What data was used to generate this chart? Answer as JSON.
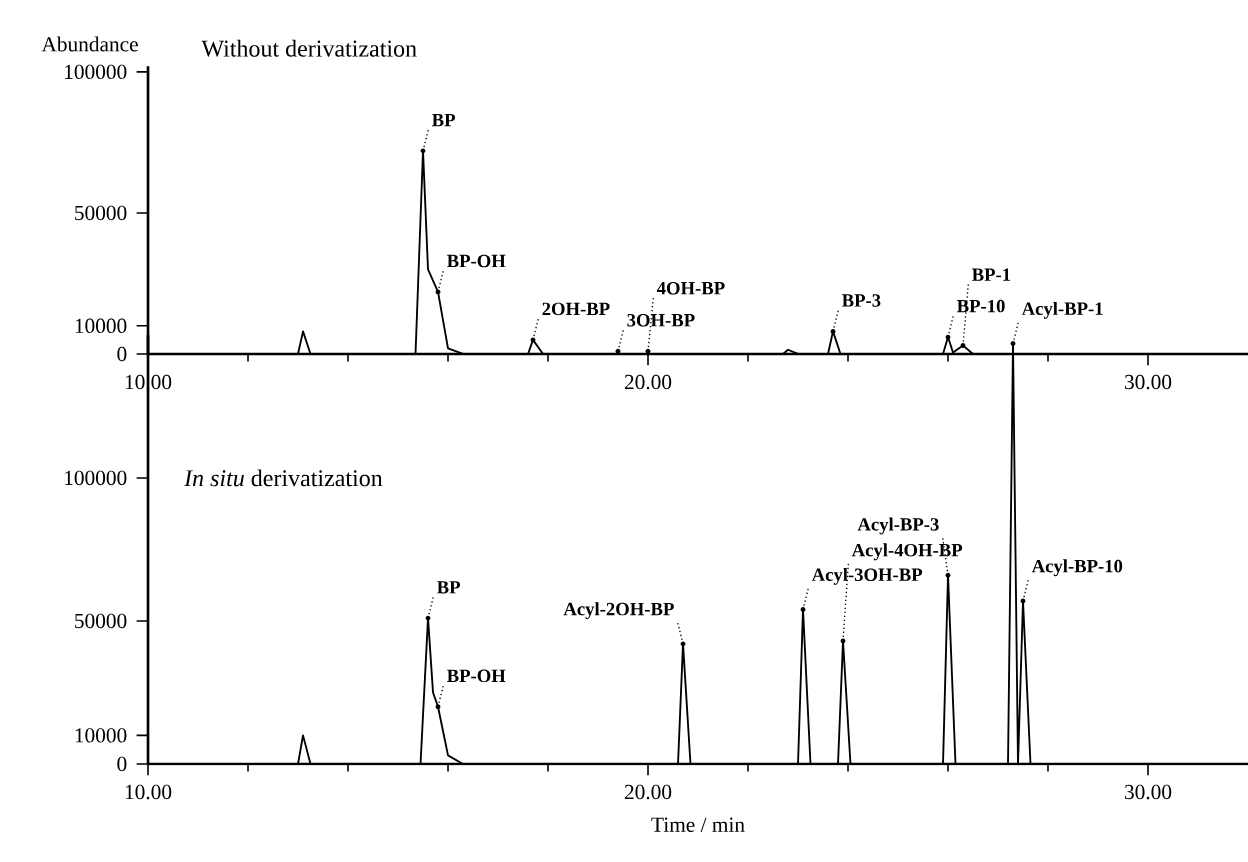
{
  "chart_data": [
    {
      "type": "line",
      "title": "Without derivatization",
      "ylabel": "Abundance",
      "color": "#000000",
      "x": [
        10,
        13.0,
        13.1,
        13.25,
        15.35,
        15.5,
        15.6,
        15.8,
        16.0,
        16.3,
        17.6,
        17.7,
        17.9,
        22.7,
        22.8,
        23.0,
        23.6,
        23.7,
        23.85,
        25.9,
        26.0,
        26.1,
        26.3,
        26.5,
        32
      ],
      "values": [
        0,
        0,
        8000,
        0,
        0,
        72000,
        30000,
        22000,
        2000,
        0,
        0,
        5000,
        0,
        0,
        1500,
        0,
        0,
        8000,
        0,
        0,
        6000,
        500,
        3000,
        0,
        0
      ],
      "xlim": [
        10,
        32
      ],
      "ylim": [
        0,
        102000
      ],
      "xticks": [
        {
          "value": 10,
          "label": "10.00"
        },
        {
          "value": 20,
          "label": "20.00"
        },
        {
          "value": 30,
          "label": "30.00"
        }
      ],
      "yticks": [
        0,
        10000,
        50000,
        100000
      ],
      "annotations": [
        {
          "text": "BP",
          "x": 15.5,
          "y": 72000
        },
        {
          "text": "BP-OH",
          "x": 15.8,
          "y": 22000
        },
        {
          "text": "2OH-BP",
          "x": 17.7,
          "y": 5000
        },
        {
          "text": "3OH-BP",
          "x": 19.4,
          "y": 1000
        },
        {
          "text": "4OH-BP",
          "x": 20.0,
          "y": 1000
        },
        {
          "text": "BP-3",
          "x": 23.7,
          "y": 8000
        },
        {
          "text": "BP-10",
          "x": 26.0,
          "y": 6000
        },
        {
          "text": "BP-1",
          "x": 26.3,
          "y": 3000
        }
      ]
    },
    {
      "type": "line",
      "title": "*In situ* derivatization",
      "xlabel": "Time / min",
      "color": "#000000",
      "x": [
        10,
        13.0,
        13.1,
        13.25,
        15.45,
        15.6,
        15.7,
        15.8,
        16.0,
        16.3,
        20.6,
        20.7,
        20.85,
        23.0,
        23.1,
        23.25,
        23.8,
        23.9,
        24.05,
        25.9,
        26.0,
        26.15,
        27.2,
        27.3,
        27.4,
        27.5,
        27.65,
        32
      ],
      "values": [
        0,
        0,
        10000,
        0,
        0,
        51000,
        25000,
        20000,
        3000,
        0,
        0,
        42000,
        0,
        0,
        54000,
        0,
        0,
        43000,
        0,
        0,
        66000,
        0,
        0,
        147000,
        0,
        57000,
        0,
        0
      ],
      "xlim": [
        10,
        32
      ],
      "ylim": [
        0,
        150000
      ],
      "xticks": [
        {
          "value": 10,
          "label": "10.00"
        },
        {
          "value": 20,
          "label": "20.00"
        },
        {
          "value": 30,
          "label": "30.00"
        }
      ],
      "yticks": [
        0,
        10000,
        50000,
        100000
      ],
      "annotations": [
        {
          "text": "BP",
          "x": 15.6,
          "y": 51000
        },
        {
          "text": "BP-OH",
          "x": 15.8,
          "y": 20000
        },
        {
          "text": "Acyl-2OH-BP",
          "x": 20.7,
          "y": 42000
        },
        {
          "text": "Acyl-3OH-BP",
          "x": 23.1,
          "y": 54000
        },
        {
          "text": "Acyl-4OH-BP",
          "x": 23.9,
          "y": 43000
        },
        {
          "text": "Acyl-BP-3",
          "x": 26.0,
          "y": 66000
        },
        {
          "text": "Acyl-BP-1",
          "x": 27.3,
          "y": 147000
        },
        {
          "text": "Acyl-BP-10",
          "x": 27.5,
          "y": 57000
        }
      ]
    }
  ]
}
